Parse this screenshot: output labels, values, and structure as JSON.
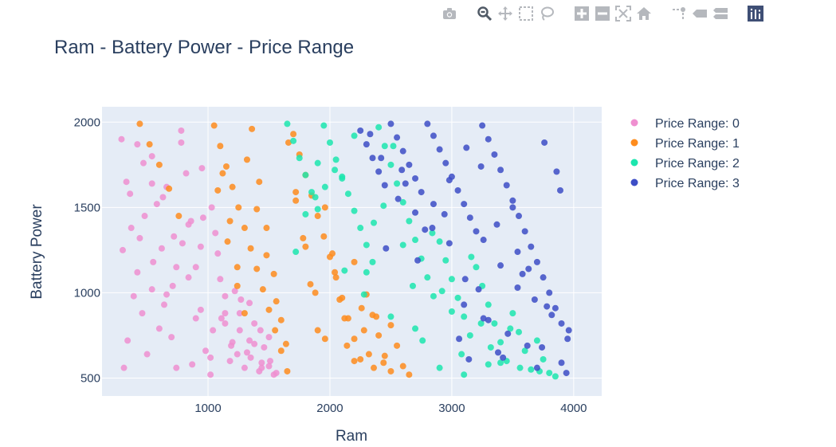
{
  "modebar": {
    "buttons": [
      {
        "name": "camera-icon"
      },
      {
        "name": "zoom-icon"
      },
      {
        "name": "pan-icon"
      },
      {
        "name": "box-select-icon"
      },
      {
        "name": "lasso-select-icon"
      },
      {
        "name": "zoom-in-icon"
      },
      {
        "name": "zoom-out-icon"
      },
      {
        "name": "autoscale-icon"
      },
      {
        "name": "reset-axes-icon"
      },
      {
        "name": "spike-lines-icon"
      },
      {
        "name": "hover-closest-icon"
      },
      {
        "name": "hover-compare-icon"
      },
      {
        "name": "plotly-logo-icon"
      }
    ]
  },
  "chart_data": {
    "type": "scatter",
    "title": "Ram - Battery Power - Price Range",
    "xlabel": "Ram",
    "ylabel": "Battery Power",
    "xlim": [
      130,
      4230
    ],
    "ylim": [
      395,
      2090
    ],
    "xticks": [
      1000,
      2000,
      3000,
      4000
    ],
    "yticks": [
      500,
      1000,
      1500,
      2000
    ],
    "grid": true,
    "legend_position": "top-right",
    "series": [
      {
        "name": "Price Range: 0",
        "color": "#EF8FD0",
        "x": [
          290,
          330,
          370,
          420,
          460,
          500,
          540,
          580,
          620,
          660,
          700,
          740,
          780,
          820,
          860,
          900,
          940,
          980,
          1020,
          1060,
          1100,
          1140,
          1180,
          1220,
          1260,
          1300,
          1340,
          1380,
          1420,
          1460,
          1500,
          1540,
          300,
          360,
          420,
          480,
          540,
          600,
          660,
          720,
          780,
          840,
          900,
          960,
          1020,
          1080,
          1140,
          1200,
          1260,
          1320,
          1380,
          1440,
          1500,
          1560,
          310,
          390,
          470,
          550,
          630,
          710,
          790,
          870,
          950,
          1030,
          1110,
          1190,
          1270,
          1350,
          1430,
          1510,
          340,
          440,
          540,
          640,
          740,
          840,
          940,
          1040,
          1140,
          1240,
          1340,
          1440
        ],
        "y": [
          1900,
          1650,
          1380,
          1120,
          880,
          640,
          1800,
          1520,
          1260,
          990,
          740,
          560,
          1950,
          1700,
          1420,
          1150,
          900,
          660,
          520,
          1350,
          1080,
          820,
          600,
          1010,
          780,
          560,
          940,
          700,
          540,
          680,
          570,
          520,
          1250,
          1580,
          1870,
          1450,
          1020,
          790,
          1620,
          1330,
          1880,
          1090,
          850,
          1440,
          620,
          1230,
          980,
          710,
          880,
          650,
          820,
          590,
          740,
          530,
          560,
          980,
          1760,
          1180,
          1560,
          1040,
          1290,
          580,
          1730,
          1500,
          850,
          690,
          960,
          620,
          780,
          600,
          720,
          1320,
          1640,
          930,
          1150,
          1400,
          1270,
          780,
          880,
          640,
          720,
          560
        ]
      },
      {
        "name": "Price Range: 1",
        "color": "#FE8C1D",
        "x": [
          1050,
          1100,
          1150,
          1200,
          1250,
          1300,
          1350,
          1400,
          1450,
          1500,
          1550,
          1600,
          1650,
          1700,
          1750,
          1800,
          1850,
          1900,
          1950,
          2000,
          2050,
          2100,
          2150,
          2200,
          2250,
          2300,
          2350,
          2400,
          2450,
          2500,
          2550,
          2600,
          2650,
          1120,
          1180,
          1240,
          1300,
          1360,
          1420,
          1480,
          1540,
          1600,
          1660,
          1720,
          1780,
          1840,
          1900,
          1960,
          2020,
          2080,
          2140,
          2200,
          2260,
          2320,
          2380,
          2440,
          2500,
          1080,
          1160,
          1240,
          1320,
          1400,
          1480,
          1560,
          1640,
          1720,
          1800,
          1880,
          1960,
          2040,
          2120,
          2200,
          2280,
          2360,
          440,
          520,
          600,
          680,
          760
        ],
        "y": [
          1980,
          1860,
          1740,
          1620,
          1500,
          1380,
          1260,
          1140,
          1020,
          900,
          780,
          660,
          540,
          1930,
          1810,
          1690,
          1570,
          1450,
          1330,
          1210,
          1090,
          970,
          850,
          730,
          610,
          990,
          870,
          750,
          630,
          810,
          690,
          570,
          520,
          1700,
          1420,
          1150,
          880,
          1960,
          1650,
          1380,
          1110,
          840,
          1880,
          1590,
          1320,
          1050,
          780,
          1500,
          1230,
          960,
          690,
          1180,
          910,
          640,
          860,
          590,
          540,
          1600,
          1300,
          1040,
          1780,
          1490,
          1220,
          950,
          700,
          1540,
          1270,
          1000,
          730,
          1120,
          850,
          600,
          780,
          560,
          1990,
          1870,
          1750,
          1610,
          1450
        ]
      },
      {
        "name": "Price Range: 2",
        "color": "#1CE6AE",
        "x": [
          1650,
          1700,
          1750,
          1800,
          1850,
          1900,
          1950,
          2000,
          2050,
          2100,
          2150,
          2200,
          2250,
          2300,
          2350,
          2400,
          2450,
          2500,
          2550,
          2600,
          2650,
          2700,
          2750,
          2800,
          2850,
          2900,
          2950,
          3000,
          3050,
          3100,
          3150,
          3200,
          3250,
          3300,
          3350,
          3400,
          3450,
          3500,
          3550,
          3600,
          3650,
          3700,
          3750,
          3800,
          3850,
          1720,
          1880,
          2040,
          2200,
          2360,
          2520,
          2680,
          2840,
          3000,
          3160,
          3320,
          3480,
          1800,
          1960,
          2120,
          2280,
          2440,
          2600,
          2760,
          2920,
          3080,
          3240,
          3400,
          3560,
          3720,
          1900,
          2100,
          2300,
          2500,
          2700,
          2900,
          3100,
          3300
        ],
        "y": [
          1990,
          1890,
          1790,
          1690,
          1590,
          1490,
          1980,
          1880,
          1780,
          1680,
          1580,
          1480,
          1380,
          1280,
          1180,
          1970,
          1860,
          1750,
          1640,
          1530,
          1420,
          1310,
          1200,
          1090,
          980,
          1300,
          1190,
          1080,
          970,
          860,
          750,
          1150,
          1040,
          930,
          820,
          710,
          600,
          880,
          770,
          660,
          550,
          720,
          610,
          530,
          510,
          1240,
          1560,
          1720,
          1920,
          1410,
          1860,
          1040,
          1350,
          890,
          1210,
          680,
          790,
          1460,
          1620,
          1130,
          990,
          1510,
          1280,
          720,
          1010,
          640,
          820,
          590,
          560,
          540,
          1760,
          1670,
          1120,
          860,
          790,
          560,
          520,
          580
        ]
      },
      {
        "name": "Price Range: 3",
        "color": "#3D4EC6",
        "x": [
          2250,
          2300,
          2350,
          2400,
          2450,
          2500,
          2550,
          2600,
          2650,
          2700,
          2750,
          2800,
          2850,
          2900,
          2950,
          3000,
          3050,
          3100,
          3150,
          3200,
          3250,
          3300,
          3350,
          3400,
          3450,
          3500,
          3550,
          3600,
          3650,
          3700,
          3750,
          3800,
          3850,
          3900,
          3950,
          2330,
          2460,
          2590,
          2720,
          2850,
          2980,
          3110,
          3240,
          3370,
          3500,
          3630,
          3760,
          3890,
          2420,
          2560,
          2700,
          2840,
          2980,
          3120,
          3260,
          3400,
          3540,
          3680,
          3820,
          3960,
          2620,
          2780,
          2940,
          3100,
          3260,
          3420,
          3580,
          3740,
          3900,
          3060,
          3220,
          3380,
          3540,
          3700,
          3860,
          3140,
          3300,
          3460,
          3620,
          3780,
          3940
        ],
        "y": [
          1950,
          1870,
          1790,
          1710,
          1630,
          1990,
          1910,
          1830,
          1750,
          1670,
          1590,
          1990,
          1920,
          1840,
          1760,
          1680,
          1600,
          1520,
          1440,
          1360,
          1980,
          1900,
          1810,
          1720,
          1630,
          1540,
          1450,
          1360,
          1270,
          1180,
          1090,
          1000,
          910,
          820,
          730,
          1930,
          1260,
          1720,
          1190,
          1520,
          1660,
          1080,
          1740,
          1400,
          1500,
          1140,
          1880,
          1600,
          1790,
          1550,
          1470,
          1380,
          1290,
          1850,
          1310,
          1160,
          1030,
          960,
          870,
          780,
          1640,
          1370,
          1460,
          930,
          850,
          620,
          1110,
          680,
          590,
          730,
          1020,
          650,
          1240,
          560,
          1710,
          610,
          840,
          760,
          690,
          920,
          530
        ]
      }
    ]
  }
}
